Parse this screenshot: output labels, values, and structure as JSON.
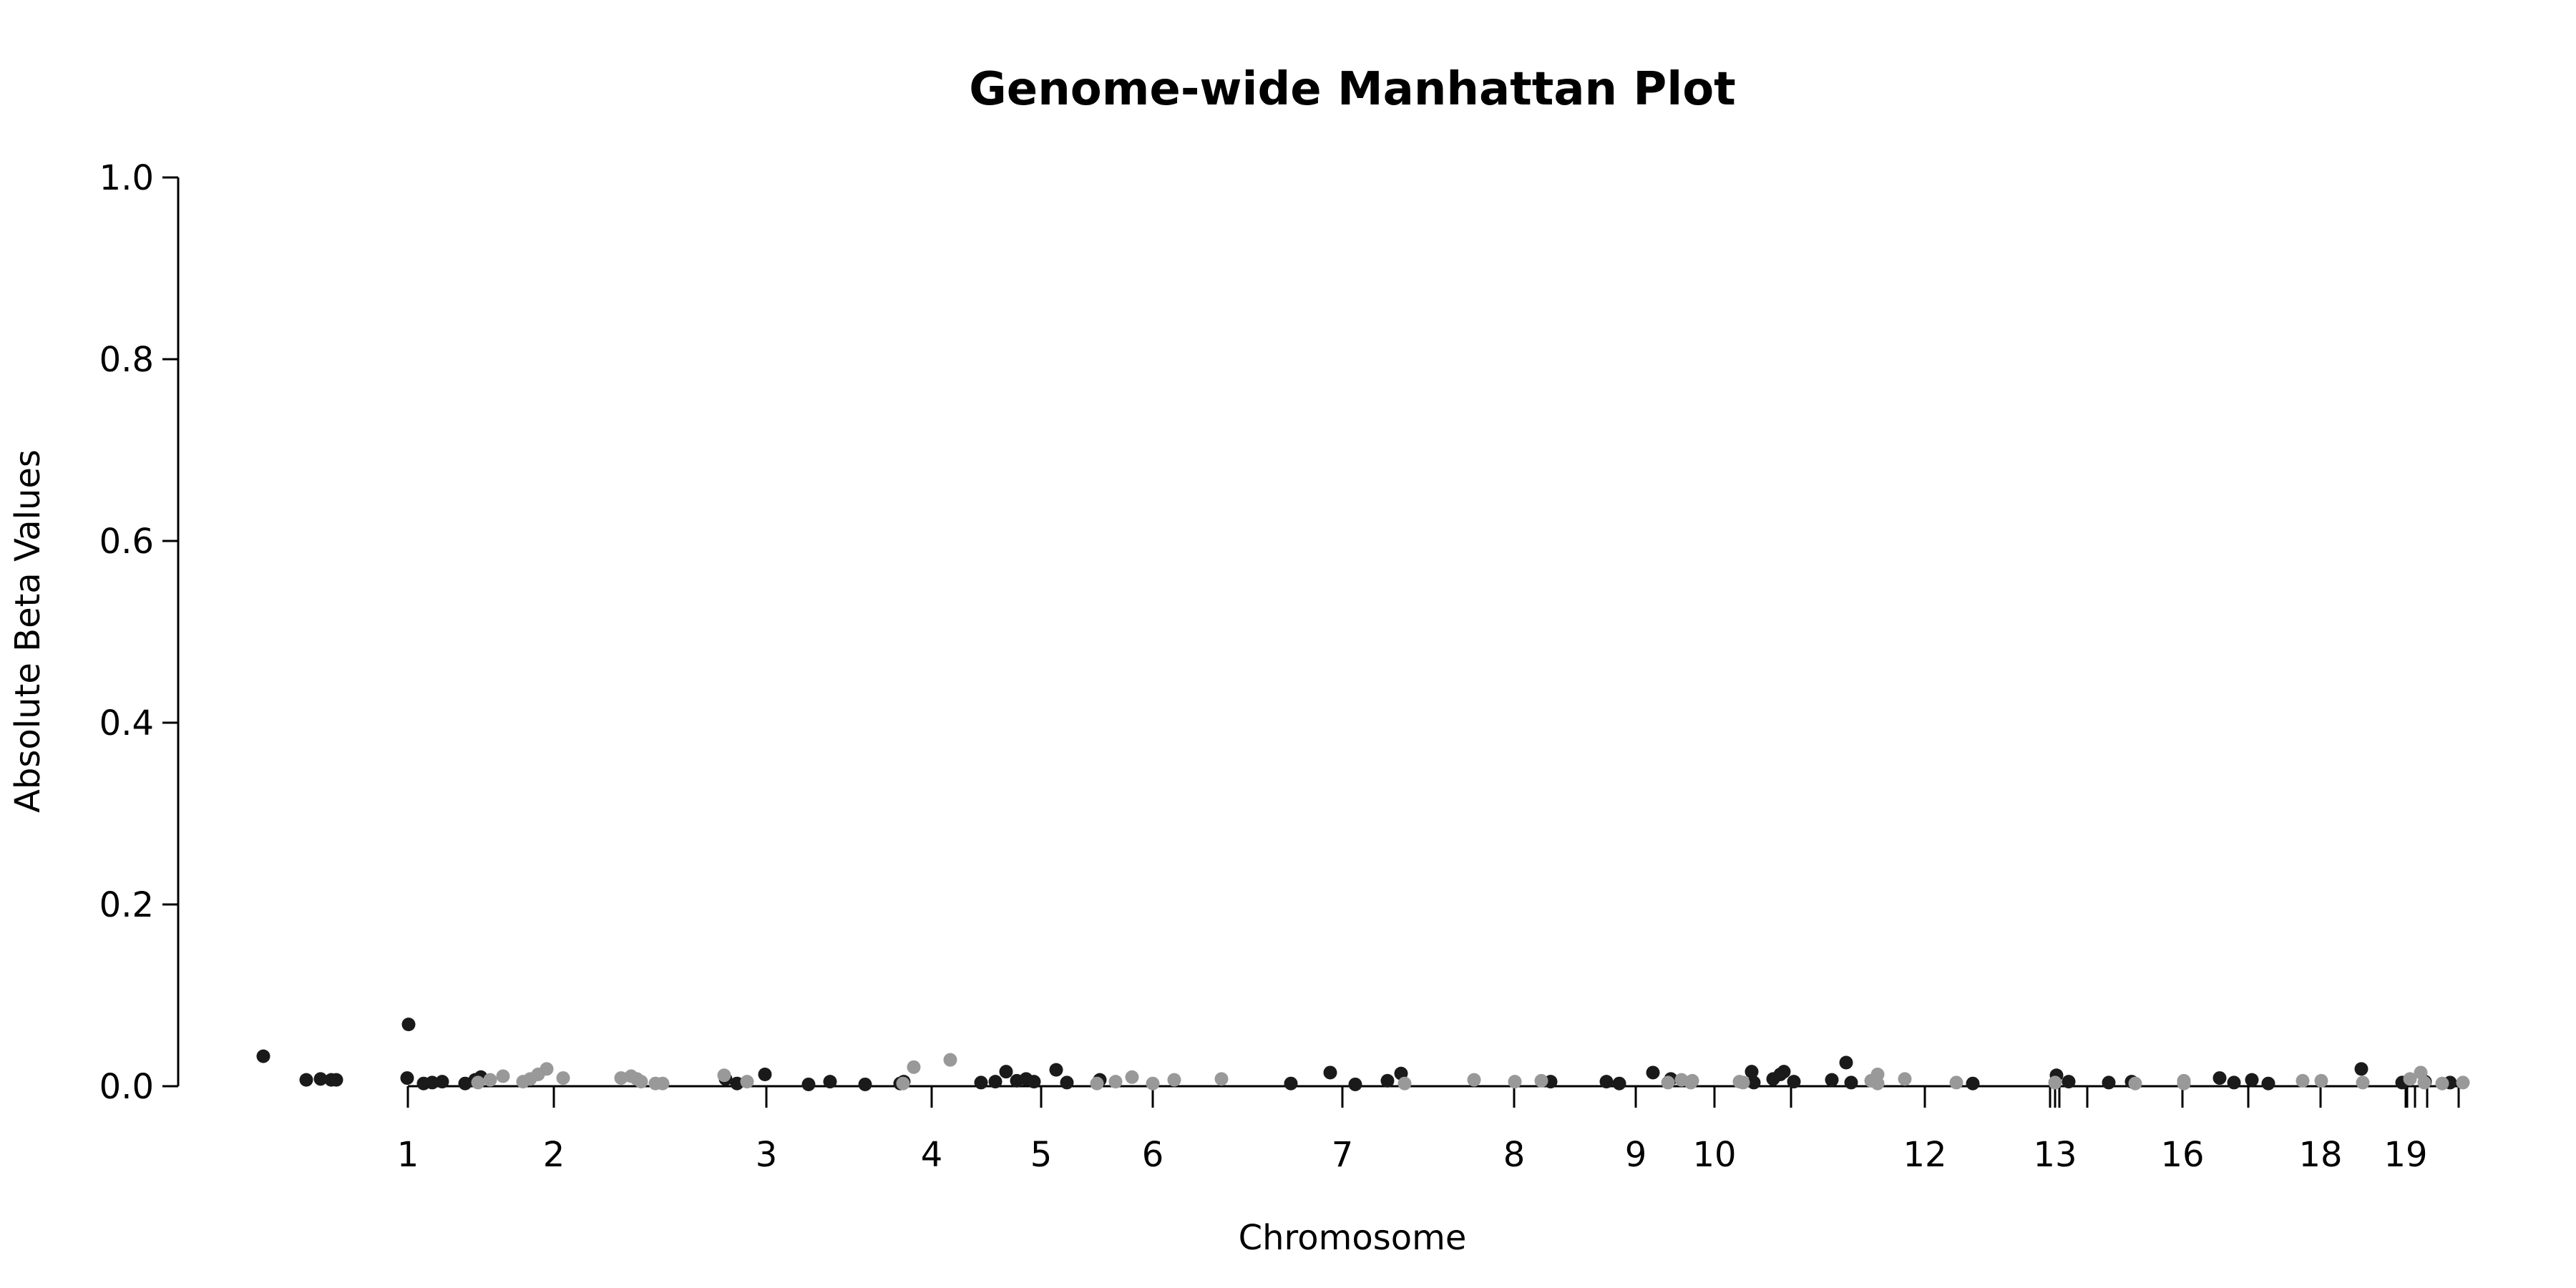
{
  "chart_data": {
    "type": "scatter",
    "title": "Genome-wide Manhattan Plot",
    "xlabel": "Chromosome",
    "ylabel": "Absolute Beta Values",
    "ylim": [
      0,
      1
    ],
    "yticks": [
      "0.0",
      "0.2",
      "0.4",
      "0.6",
      "0.8",
      "1.0"
    ],
    "grid": false,
    "colors": {
      "dark": "#1a1a1a",
      "light": "#999999"
    },
    "x_tick_labels": [
      "1",
      "2",
      "3",
      "4",
      "5",
      "6",
      "7",
      "8",
      "9",
      "10",
      "12",
      "13",
      "16",
      "18",
      "19"
    ],
    "series": [
      {
        "color": "dark",
        "points": [
          [
            "0",
            0.033
          ],
          [
            "0",
            0.007
          ],
          [
            "0",
            0.008
          ],
          [
            "0",
            0.007
          ],
          [
            "0",
            0.007
          ],
          [
            "1",
            0.068
          ],
          [
            "1",
            0.009
          ],
          [
            "1",
            0.003
          ],
          [
            "1",
            0.004
          ],
          [
            "1",
            0.005
          ],
          [
            "1",
            0.003
          ],
          [
            "1",
            0.007
          ],
          [
            "1",
            0.01
          ],
          [
            "3",
            0.013
          ],
          [
            "3",
            0.008
          ],
          [
            "3",
            0.003
          ],
          [
            "3",
            0.002
          ],
          [
            "3",
            0.005
          ],
          [
            "3",
            0.002
          ],
          [
            "3",
            0.003
          ],
          [
            "3",
            0.005
          ],
          [
            "4",
            0.004
          ],
          [
            "4",
            0.005
          ],
          [
            "4",
            0.016
          ],
          [
            "4",
            0.006
          ],
          [
            "4",
            0.008
          ],
          [
            "4",
            0.005
          ],
          [
            "5",
            0.018
          ],
          [
            "5",
            0.004
          ],
          [
            "6",
            0.007
          ],
          [
            "6",
            0.003
          ],
          [
            "6",
            0.015
          ],
          [
            "7",
            0.002
          ],
          [
            "7",
            0.006
          ],
          [
            "7",
            0.014
          ],
          [
            "8",
            0.005
          ],
          [
            "9",
            0.005
          ],
          [
            "9",
            0.003
          ],
          [
            "9",
            0.015
          ],
          [
            "9",
            0.008
          ],
          [
            "10",
            0.016
          ],
          [
            "10",
            0.004
          ],
          [
            "10",
            0.008
          ],
          [
            "10",
            0.013
          ],
          [
            "10",
            0.016
          ],
          [
            "10",
            0.005
          ],
          [
            "10",
            0.007
          ],
          [
            "10",
            0.026
          ],
          [
            "10",
            0.004
          ],
          [
            "12",
            0.003
          ],
          [
            "13",
            0.012
          ],
          [
            "13",
            0.005
          ],
          [
            "13",
            0.004
          ],
          [
            "13",
            0.005
          ],
          [
            "16",
            0.009
          ],
          [
            "16",
            0.004
          ],
          [
            "16",
            0.007
          ],
          [
            "16",
            0.003
          ],
          [
            "18",
            0.019
          ],
          [
            "19",
            0.004
          ],
          [
            "19",
            0.005
          ],
          [
            "19",
            0.004
          ]
        ]
      },
      {
        "color": "light",
        "points": [
          [
            "1",
            0.004
          ],
          [
            "1",
            0.007
          ],
          [
            "1",
            0.011
          ],
          [
            "1",
            0.005
          ],
          [
            "1",
            0.008
          ],
          [
            "1",
            0.013
          ],
          [
            "1",
            0.019
          ],
          [
            "1",
            0.009
          ],
          [
            "2",
            0.009
          ],
          [
            "2",
            0.011
          ],
          [
            "2",
            0.008
          ],
          [
            "2",
            0.005
          ],
          [
            "2",
            0.003
          ],
          [
            "2",
            0.003
          ],
          [
            "2",
            0.012
          ],
          [
            "2",
            0.005
          ],
          [
            "3",
            0.003
          ],
          [
            "3",
            0.021
          ],
          [
            "3",
            0.029
          ],
          [
            "4",
            0.003
          ],
          [
            "5",
            0.005
          ],
          [
            "5",
            0.01
          ],
          [
            "5",
            0.003
          ],
          [
            "6",
            0.007
          ],
          [
            "6",
            0.008
          ],
          [
            "6",
            0.003
          ],
          [
            "7",
            0.007
          ],
          [
            "8",
            0.005
          ],
          [
            "8",
            0.006
          ],
          [
            "8",
            0.004
          ],
          [
            "9",
            0.006
          ],
          [
            "9",
            0.005
          ],
          [
            "10",
            0.004
          ],
          [
            "10",
            0.007
          ],
          [
            "10",
            0.004
          ],
          [
            "10",
            0.006
          ],
          [
            "10",
            0.003
          ],
          [
            "12",
            0.013
          ],
          [
            "12",
            0.008
          ],
          [
            "12",
            0.004
          ],
          [
            "13",
            0.004
          ],
          [
            "13",
            0.003
          ],
          [
            "16",
            0.006
          ],
          [
            "16",
            0.003
          ],
          [
            "18",
            0.006
          ],
          [
            "18",
            0.006
          ],
          [
            "18",
            0.004
          ],
          [
            "19",
            0.008
          ],
          [
            "19",
            0.015
          ],
          [
            "19",
            0.004
          ],
          [
            "19",
            0.003
          ],
          [
            "19",
            0.004
          ]
        ]
      }
    ]
  }
}
